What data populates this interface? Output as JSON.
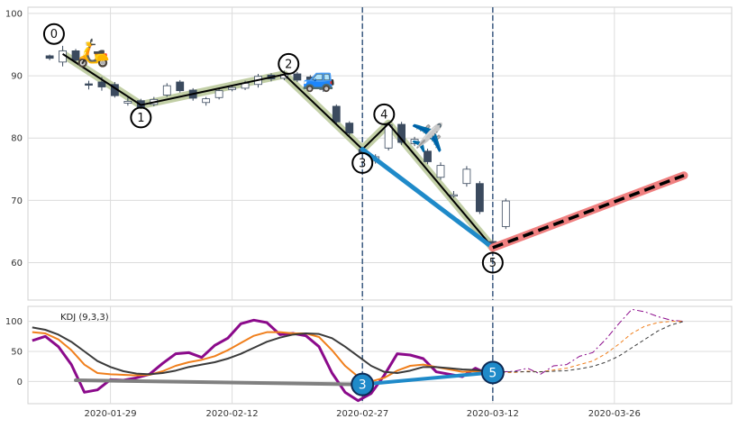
{
  "chart_data": [
    {
      "type": "candlestick",
      "title": "",
      "xlabel": "",
      "ylabel": "",
      "x_tick_labels": [
        "2020-01-29",
        "2020-02-12",
        "2020-02-27",
        "2020-03-12",
        "2020-03-26"
      ],
      "x_tick_days": [
        7,
        21,
        36,
        51,
        65
      ],
      "x_range_days": [
        -2.5,
        78.5
      ],
      "ylim": [
        54,
        101
      ],
      "y_ticks": [
        60,
        70,
        80,
        90,
        100
      ],
      "grid": true,
      "legend": "none",
      "colors": {
        "up": "#ffffff",
        "down": "#3b4a5e",
        "zigzag": "#000000",
        "zigzag_halo": "#c2cfa6",
        "blue": "#1f8ac9",
        "pink": "#f08080",
        "vline": "#3a5a80"
      },
      "candles": [
        {
          "day": 0,
          "open": 93.2,
          "close": 92.8,
          "high": 93.4,
          "low": 92.5
        },
        {
          "day": 1.5,
          "open": 92.2,
          "close": 94.0,
          "high": 94.8,
          "low": 91.5
        },
        {
          "day": 3,
          "open": 94.0,
          "close": 92.5,
          "high": 94.3,
          "low": 92.2
        },
        {
          "day": 4.5,
          "open": 88.7,
          "close": 88.5,
          "high": 89.2,
          "low": 87.8
        },
        {
          "day": 6,
          "open": 89.0,
          "close": 88.2,
          "high": 89.8,
          "low": 87.6
        },
        {
          "day": 7.5,
          "open": 88.6,
          "close": 86.8,
          "high": 89.0,
          "low": 86.5
        },
        {
          "day": 9,
          "open": 85.6,
          "close": 85.9,
          "high": 86.5,
          "low": 85.2
        },
        {
          "day": 10.5,
          "open": 86.0,
          "close": 85.0,
          "high": 86.3,
          "low": 84.7
        },
        {
          "day": 12,
          "open": 85.4,
          "close": 86.2,
          "high": 86.6,
          "low": 85.1
        },
        {
          "day": 13.5,
          "open": 86.9,
          "close": 88.4,
          "high": 88.8,
          "low": 86.6
        },
        {
          "day": 15,
          "open": 89.0,
          "close": 87.6,
          "high": 89.3,
          "low": 87.3
        },
        {
          "day": 16.5,
          "open": 87.7,
          "close": 86.4,
          "high": 88.0,
          "low": 86.0
        },
        {
          "day": 18,
          "open": 85.7,
          "close": 86.3,
          "high": 86.6,
          "low": 85.2
        },
        {
          "day": 19.5,
          "open": 86.5,
          "close": 87.6,
          "high": 87.9,
          "low": 86.2
        },
        {
          "day": 21,
          "open": 87.8,
          "close": 88.1,
          "high": 88.4,
          "low": 87.5
        },
        {
          "day": 22.5,
          "open": 88.0,
          "close": 88.8,
          "high": 89.2,
          "low": 87.7
        },
        {
          "day": 24,
          "open": 88.6,
          "close": 89.9,
          "high": 90.3,
          "low": 88.1
        },
        {
          "day": 25.5,
          "open": 90.1,
          "close": 89.5,
          "high": 90.4,
          "low": 89.1
        },
        {
          "day": 27,
          "open": 89.6,
          "close": 90.2,
          "high": 90.8,
          "low": 89.3
        },
        {
          "day": 28.5,
          "open": 90.3,
          "close": 89.3,
          "high": 90.6,
          "low": 89.0
        },
        {
          "day": 30,
          "open": 89.8,
          "close": 88.9,
          "high": 90.1,
          "low": 88.5
        },
        {
          "day": 31.5,
          "open": 88.2,
          "close": 87.8,
          "high": 88.5,
          "low": 87.4
        },
        {
          "day": 33,
          "open": 85.1,
          "close": 82.6,
          "high": 85.4,
          "low": 82.2
        },
        {
          "day": 34.5,
          "open": 82.4,
          "close": 80.8,
          "high": 82.7,
          "low": 80.4
        },
        {
          "day": 36,
          "open": 78.2,
          "close": 77.7,
          "high": 78.6,
          "low": 77.3
        },
        {
          "day": 37.5,
          "open": 76.3,
          "close": 77.0,
          "high": 77.4,
          "low": 75.9
        },
        {
          "day": 39,
          "open": 78.4,
          "close": 82.1,
          "high": 82.6,
          "low": 78.0
        },
        {
          "day": 40.5,
          "open": 82.2,
          "close": 79.3,
          "high": 82.6,
          "low": 78.9
        },
        {
          "day": 42,
          "open": 79.1,
          "close": 79.8,
          "high": 80.2,
          "low": 78.7
        },
        {
          "day": 43.5,
          "open": 77.9,
          "close": 76.2,
          "high": 78.3,
          "low": 75.8
        },
        {
          "day": 45,
          "open": 73.7,
          "close": 75.6,
          "high": 76.1,
          "low": 73.3
        },
        {
          "day": 46.5,
          "open": 70.7,
          "close": 70.9,
          "high": 71.5,
          "low": 70.4
        },
        {
          "day": 48,
          "open": 72.7,
          "close": 75.0,
          "high": 75.5,
          "low": 72.2
        },
        {
          "day": 49.5,
          "open": 72.7,
          "close": 68.2,
          "high": 73.1,
          "low": 67.8
        },
        {
          "day": 51,
          "open": 63.4,
          "close": 62.9,
          "high": 63.7,
          "low": 62.5
        },
        {
          "day": 52.5,
          "open": 65.8,
          "close": 69.9,
          "high": 70.3,
          "low": 65.4
        }
      ],
      "zigzag": {
        "points": [
          {
            "label": "0",
            "day": 1.5,
            "value": 93.5
          },
          {
            "label": "1",
            "day": 10.5,
            "value": 85.3
          },
          {
            "label": "2",
            "day": 27,
            "value": 90.2
          },
          {
            "label": "3",
            "day": 36,
            "value": 78.2
          },
          {
            "label": "4",
            "day": 39,
            "value": 82.3
          },
          {
            "label": "5",
            "day": 51,
            "value": 62.4
          }
        ]
      },
      "markers": [
        {
          "label": "0",
          "day": 0.5,
          "value": 96.7
        },
        {
          "label": "1",
          "day": 10.5,
          "value": 83.3
        },
        {
          "label": "2",
          "day": 27.5,
          "value": 91.9
        },
        {
          "label": "3",
          "day": 36,
          "value": 76.0
        },
        {
          "label": "4",
          "day": 38.5,
          "value": 83.8
        },
        {
          "label": "5",
          "day": 51,
          "value": 60.0
        }
      ],
      "trend_line": {
        "from": {
          "day": 36,
          "value": 78.2
        },
        "to": {
          "day": 51,
          "value": 62.4
        }
      },
      "projection": {
        "from": {
          "day": 51,
          "value": 62.4
        },
        "to": {
          "day": 73,
          "value": 74.0
        }
      },
      "vertical_lines_days": [
        36,
        51
      ],
      "icons": [
        {
          "name": "scooter-icon",
          "glyph": "🛵",
          "day": 5,
          "value": 93.7
        },
        {
          "name": "car-icon",
          "glyph": "🚙",
          "day": 31,
          "value": 89.7
        },
        {
          "name": "airplane-icon",
          "glyph": "✈️",
          "day": 43.5,
          "value": 80.0
        }
      ]
    },
    {
      "type": "line",
      "title": "KDJ (9,3,3)",
      "xlabel": "",
      "ylabel": "",
      "ylim": [
        -37,
        125
      ],
      "y_ticks": [
        0,
        50,
        100
      ],
      "grid": true,
      "legend": "none",
      "x_days": [
        -2,
        -0.5,
        1,
        2.5,
        4,
        5.5,
        7,
        8.5,
        10,
        11.5,
        13,
        14.5,
        16,
        17.5,
        19,
        20.5,
        22,
        23.5,
        25,
        26.5,
        28,
        29.5,
        31,
        32.5,
        34,
        35.5,
        37,
        38.5,
        40,
        41.5,
        43,
        44.5,
        46,
        47.5,
        49,
        50.5,
        52
      ],
      "series": [
        {
          "color": "#8b0a8b",
          "width": 3,
          "values": [
            68,
            75,
            58,
            28,
            -18,
            -14,
            3,
            2,
            6,
            12,
            30,
            46,
            48,
            40,
            60,
            72,
            96,
            102,
            98,
            78,
            80,
            76,
            58,
            14,
            -18,
            -32,
            -20,
            10,
            46,
            44,
            38,
            16,
            12,
            8,
            22,
            12,
            16
          ]
        },
        {
          "color": "#f07f1c",
          "width": 2,
          "values": [
            82,
            80,
            70,
            52,
            28,
            14,
            12,
            11,
            10,
            11,
            17,
            26,
            32,
            36,
            42,
            52,
            64,
            76,
            82,
            82,
            80,
            80,
            74,
            52,
            26,
            8,
            0,
            6,
            18,
            26,
            28,
            24,
            20,
            16,
            17,
            15,
            15
          ]
        },
        {
          "color": "#3b3b3b",
          "width": 2,
          "values": [
            90,
            86,
            78,
            66,
            50,
            34,
            24,
            17,
            13,
            12,
            14,
            18,
            24,
            28,
            32,
            38,
            46,
            56,
            66,
            73,
            78,
            80,
            79,
            72,
            58,
            42,
            26,
            16,
            14,
            18,
            24,
            24,
            22,
            20,
            19,
            17,
            16
          ]
        }
      ],
      "projection_series": [
        {
          "color": "#8b0a8b",
          "style": "dashdot",
          "x_days": [
            52,
            53.5,
            55,
            56.5,
            58,
            59.5,
            61,
            62.5,
            64,
            65.5,
            67,
            68.5,
            70,
            71.5,
            73
          ],
          "values": [
            16,
            17,
            22,
            12,
            26,
            28,
            42,
            48,
            70,
            96,
            120,
            116,
            108,
            102,
            100
          ]
        },
        {
          "color": "#f07f1c",
          "style": "dashed",
          "x_days": [
            52,
            53.5,
            55,
            56.5,
            58,
            59.5,
            61,
            62.5,
            64,
            65.5,
            67,
            68.5,
            70,
            71.5,
            73
          ],
          "values": [
            15,
            15,
            17,
            16,
            19,
            22,
            28,
            34,
            46,
            62,
            80,
            92,
            98,
            100,
            100
          ]
        },
        {
          "color": "#3b3b3b",
          "style": "dashed",
          "x_days": [
            52,
            53.5,
            55,
            56.5,
            58,
            59.5,
            61,
            62.5,
            64,
            65.5,
            67,
            68.5,
            70,
            71.5,
            73
          ],
          "values": [
            16,
            16,
            16,
            16,
            17,
            18,
            21,
            25,
            32,
            42,
            56,
            70,
            84,
            94,
            100
          ]
        }
      ],
      "connector_lines": [
        {
          "color": "#808080",
          "from": {
            "day": 3,
            "value": 2
          },
          "to": {
            "day": 36,
            "value": -5
          }
        },
        {
          "color": "#1f8ac9",
          "from": {
            "day": 36,
            "value": -5
          },
          "to": {
            "day": 51,
            "value": 15
          }
        }
      ],
      "markers": [
        {
          "label": "3",
          "day": 36,
          "value": -5
        },
        {
          "label": "5",
          "day": 51,
          "value": 15
        }
      ],
      "vertical_lines_days": [
        36,
        51
      ]
    }
  ]
}
